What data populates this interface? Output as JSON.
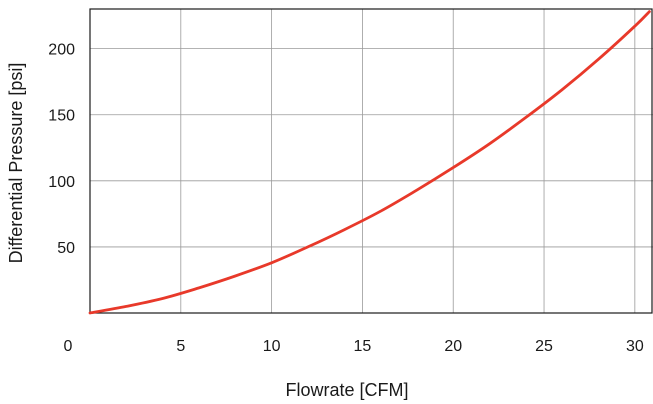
{
  "chart_data": {
    "type": "line",
    "title": "",
    "xlabel": "Flowrate [CFM]",
    "ylabel": "Differential Pressure [psi]",
    "xlim": [
      0,
      31
    ],
    "ylim": [
      0,
      230
    ],
    "x_ticks": [
      0,
      5,
      10,
      15,
      20,
      25,
      30
    ],
    "x_tick_labels": [
      "0",
      "5",
      "10",
      "15",
      "20",
      "25",
      "30"
    ],
    "y_ticks": [
      50,
      100,
      150,
      200
    ],
    "y_tick_labels": [
      "50",
      "100",
      "150",
      "200"
    ],
    "grid": true,
    "legend": "none",
    "series": [
      {
        "color": "#e8392a",
        "x": [
          0,
          2,
          4,
          6,
          8,
          10,
          12,
          14,
          16,
          18,
          20,
          22,
          24,
          26,
          28,
          30,
          30.8
        ],
        "y": [
          0,
          5,
          11,
          19,
          28,
          38,
          50,
          63,
          77,
          93,
          110,
          128,
          148,
          169,
          192,
          217,
          228
        ]
      }
    ]
  }
}
